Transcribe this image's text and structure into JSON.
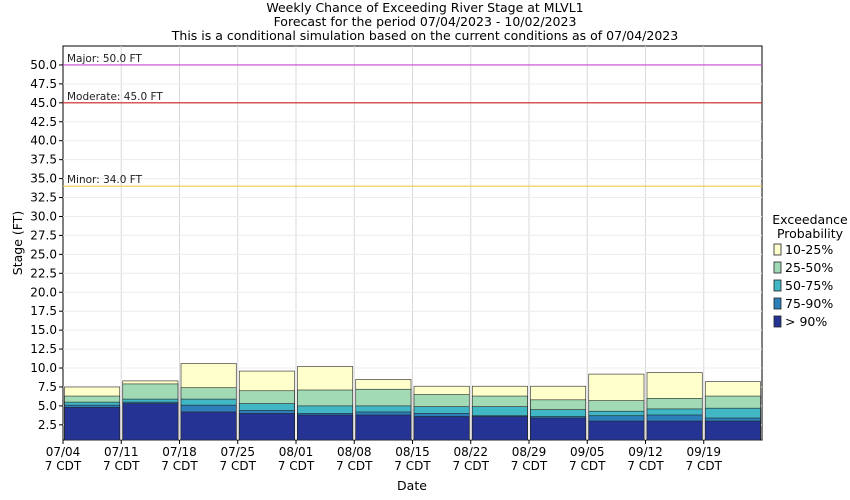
{
  "chart_data": {
    "type": "bar",
    "stacked": true,
    "title_lines": [
      "Weekly Chance of Exceeding River Stage at MLVL1",
      "Forecast for the period 07/04/2023 - 10/02/2023",
      "This is a conditional simulation based on the current conditions as of 07/04/2023"
    ],
    "xlabel": "Date",
    "ylabel": "Stage (FT)",
    "ylim": [
      0.5,
      52.5
    ],
    "yticks": [
      "2.5",
      "5.0",
      "7.5",
      "10.0",
      "12.5",
      "15.0",
      "17.5",
      "20.0",
      "22.5",
      "25.0",
      "27.5",
      "30.0",
      "32.5",
      "35.0",
      "37.5",
      "40.0",
      "42.5",
      "45.0",
      "47.5",
      "50.0"
    ],
    "ytick_values": [
      2.5,
      5,
      7.5,
      10,
      12.5,
      15,
      17.5,
      20,
      22.5,
      25,
      27.5,
      30,
      32.5,
      35,
      37.5,
      40,
      42.5,
      45,
      47.5,
      50
    ],
    "xtick_dates": [
      "07/04",
      "07/11",
      "07/18",
      "07/25",
      "08/01",
      "08/08",
      "08/15",
      "08/22",
      "08/29",
      "09/05",
      "09/12",
      "09/19"
    ],
    "xtick_sub": "7 CDT",
    "thresholds": [
      {
        "label": "Major: 50.0 FT",
        "value": 50.0,
        "color": "#cc44cc"
      },
      {
        "label": "Moderate: 45.0 FT",
        "value": 45.0,
        "color": "#cc2222"
      },
      {
        "label": "Minor: 34.0 FT",
        "value": 34.0,
        "color": "#eecc44"
      }
    ],
    "legend": {
      "title_lines": [
        "Exceedance",
        "Probability"
      ],
      "placement": "right",
      "entries": [
        {
          "label": "10-25%",
          "color": "#ffffcc"
        },
        {
          "label": "25-50%",
          "color": "#a1dab4"
        },
        {
          "label": "50-75%",
          "color": "#41b6c4"
        },
        {
          "label": "75-90%",
          "color": "#2c7fb8"
        },
        {
          "label": "> 90%",
          "color": "#253494"
        }
      ]
    },
    "series_order": [
      "> 90%",
      "75-90%",
      "50-75%",
      "25-50%",
      "10-25%"
    ],
    "weeks": [
      {
        "date": "07/04",
        "levels": [
          4.8,
          5.1,
          5.5,
          6.3,
          7.5
        ]
      },
      {
        "date": "07/11",
        "levels": [
          5.3,
          5.5,
          5.9,
          7.9,
          8.3
        ]
      },
      {
        "date": "07/18",
        "levels": [
          4.2,
          5.1,
          5.9,
          7.4,
          10.6
        ]
      },
      {
        "date": "07/25",
        "levels": [
          4.0,
          4.4,
          5.3,
          7.0,
          9.6
        ]
      },
      {
        "date": "08/01",
        "levels": [
          3.8,
          4.0,
          5.0,
          7.1,
          10.2
        ]
      },
      {
        "date": "08/08",
        "levels": [
          3.8,
          4.2,
          5.0,
          7.2,
          8.5
        ]
      },
      {
        "date": "08/15",
        "levels": [
          3.6,
          4.0,
          4.9,
          6.5,
          7.6
        ]
      },
      {
        "date": "08/22",
        "levels": [
          3.6,
          3.7,
          4.9,
          6.3,
          7.6
        ]
      },
      {
        "date": "08/29",
        "levels": [
          3.4,
          3.6,
          4.5,
          5.8,
          7.6
        ]
      },
      {
        "date": "09/05",
        "levels": [
          3.0,
          3.7,
          4.3,
          5.7,
          9.2
        ]
      },
      {
        "date": "09/12",
        "levels": [
          3.0,
          3.8,
          4.6,
          6.0,
          9.4
        ]
      },
      {
        "date": "09/19",
        "levels": [
          3.0,
          3.4,
          4.7,
          6.3,
          8.2
        ]
      }
    ],
    "grid": true
  }
}
